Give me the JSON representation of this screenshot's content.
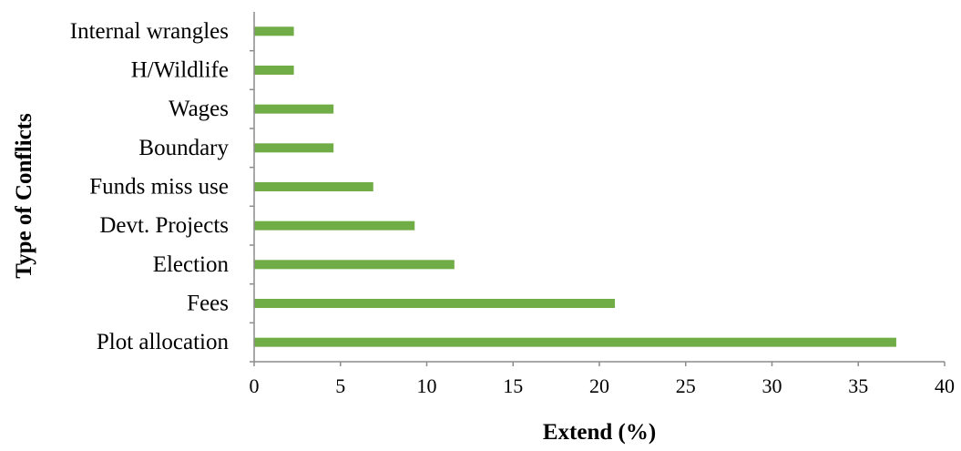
{
  "chart_data": {
    "type": "bar",
    "orientation": "horizontal",
    "categories": [
      "Plot allocation",
      "Fees",
      "Election",
      "Devt. Projects",
      "Funds miss use",
      "Boundary",
      "Wages",
      "H/Wildlife",
      "Internal wrangles"
    ],
    "values": [
      37.2,
      20.9,
      11.6,
      9.3,
      6.9,
      4.6,
      4.6,
      2.3,
      2.3
    ],
    "xlabel": "Extend (%)",
    "ylabel": "Type of Conflicts",
    "xlim": [
      0,
      40
    ],
    "xticks": [
      0,
      5,
      10,
      15,
      20,
      25,
      30,
      35,
      40
    ],
    "grid": false,
    "legend": "none",
    "bar_color": "#70ad47",
    "axis_color": "#8c8c8c"
  }
}
